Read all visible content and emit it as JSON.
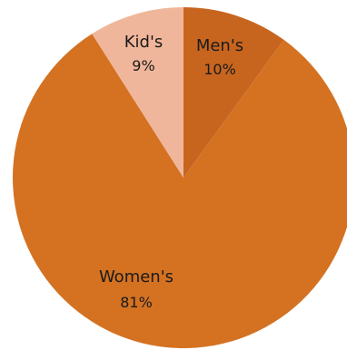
{
  "chart_data": {
    "type": "pie",
    "slices": [
      {
        "name": "Men's",
        "value": 10,
        "label_text": "10%",
        "color": "#c7651f"
      },
      {
        "name": "Women's",
        "value": 81,
        "label_text": "81%",
        "color": "#d47222"
      },
      {
        "name": "Kid's",
        "value": 9,
        "label_text": "9%",
        "color": "#f0b69b"
      }
    ],
    "unit": "%",
    "legend": "none",
    "data_labels": "inside slices"
  }
}
